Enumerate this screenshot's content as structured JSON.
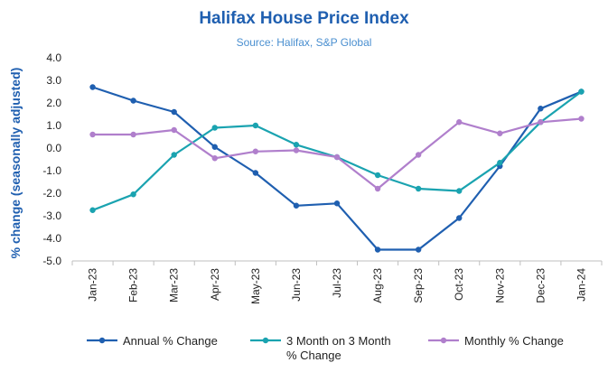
{
  "chart_data": {
    "type": "line",
    "title": "Halifax House Price Index",
    "subtitle": "Source: Halifax,  S&P Global",
    "ylabel": "%  change (seasonally adjusted)",
    "xlabel": "",
    "ylim": [
      -5.0,
      4.0
    ],
    "yticks": [
      "4.0",
      "3.0",
      "2.0",
      "1.0",
      "0.0",
      "-1.0",
      "-2.0",
      "-3.0",
      "-4.0",
      "-5.0"
    ],
    "categories": [
      "Jan-23",
      "Feb-23",
      "Mar-23",
      "Apr-23",
      "May-23",
      "Jun-23",
      "Jul-23",
      "Aug-23",
      "Sep-23",
      "Oct-23",
      "Nov-23",
      "Dec-23",
      "Jan-24"
    ],
    "series": [
      {
        "name": "Annual % Change",
        "color": "#1f5fb0",
        "values": [
          2.7,
          2.1,
          1.6,
          0.05,
          -1.1,
          -2.55,
          -2.45,
          -4.5,
          -4.5,
          -3.1,
          -0.8,
          1.75,
          2.5
        ]
      },
      {
        "name": "3 Month on 3 Month % Change",
        "color": "#1aa3b0",
        "values": [
          -2.75,
          -2.05,
          -0.3,
          0.9,
          1.0,
          0.15,
          -0.4,
          -1.2,
          -1.8,
          -1.9,
          -0.65,
          1.15,
          2.5
        ]
      },
      {
        "name": "Monthly % Change",
        "color": "#b07fcc",
        "values": [
          0.6,
          0.6,
          0.8,
          -0.45,
          -0.15,
          -0.1,
          -0.4,
          -1.8,
          -0.3,
          1.15,
          0.65,
          1.15,
          1.3
        ]
      }
    ],
    "legend": {
      "position": "bottom",
      "labels": [
        "Annual % Change",
        "3 Month on 3 Month",
        "% Change",
        "Monthly % Change"
      ]
    }
  }
}
